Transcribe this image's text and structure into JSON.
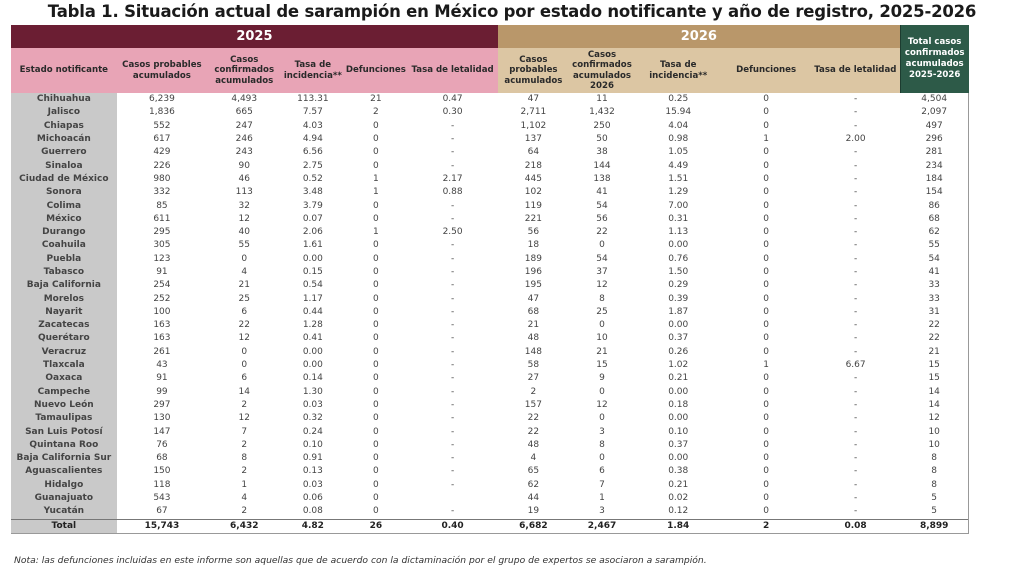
{
  "title": "Tabla 1. Situación actual de sarampión en México por estado notificante y año de registro, 2025-2026",
  "colors": {
    "year2025": "#6b1e33",
    "header2025": "#e8a4b6",
    "year2026": "#b9976a",
    "header2026": "#dcc6a3",
    "total": "#2d5a48",
    "stateCol": "#c9c9c9"
  },
  "header": {
    "year_2025": "2025",
    "year_2026": "2026",
    "state": "Estado notificante",
    "c25_probables": "Casos probables acumulados",
    "c25_confirmados": "Casos confirmados acumulados",
    "c25_tasa_inc": "Tasa de incidencia**",
    "c25_defunciones": "Defunciones",
    "c25_letalidad": "Tasa de letalidad",
    "c26_probables": "Casos probables acumulados",
    "c26_confirmados": "Casos confirmados acumulados 2026",
    "c26_tasa_inc": "Tasa de incidencia**",
    "c26_defunciones": "Defunciones",
    "c26_letalidad": "Tasa de letalidad",
    "total": "Total casos confirmados acumulados 2025-2026"
  },
  "rows": [
    [
      "Chihuahua",
      "6,239",
      "4,493",
      "113.31",
      "21",
      "0.47",
      "47",
      "11",
      "0.25",
      "0",
      "-",
      "4,504"
    ],
    [
      "Jalisco",
      "1,836",
      "665",
      "7.57",
      "2",
      "0.30",
      "2,711",
      "1,432",
      "15.94",
      "0",
      "-",
      "2,097"
    ],
    [
      "Chiapas",
      "552",
      "247",
      "4.03",
      "0",
      "-",
      "1,102",
      "250",
      "4.04",
      "0",
      "-",
      "497"
    ],
    [
      "Michoacán",
      "617",
      "246",
      "4.94",
      "0",
      "-",
      "137",
      "50",
      "0.98",
      "1",
      "2.00",
      "296"
    ],
    [
      "Guerrero",
      "429",
      "243",
      "6.56",
      "0",
      "-",
      "64",
      "38",
      "1.05",
      "0",
      "-",
      "281"
    ],
    [
      "Sinaloa",
      "226",
      "90",
      "2.75",
      "0",
      "-",
      "218",
      "144",
      "4.49",
      "0",
      "-",
      "234"
    ],
    [
      "Ciudad de México",
      "980",
      "46",
      "0.52",
      "1",
      "2.17",
      "445",
      "138",
      "1.51",
      "0",
      "-",
      "184"
    ],
    [
      "Sonora",
      "332",
      "113",
      "3.48",
      "1",
      "0.88",
      "102",
      "41",
      "1.29",
      "0",
      "-",
      "154"
    ],
    [
      "Colima",
      "85",
      "32",
      "3.79",
      "0",
      "-",
      "119",
      "54",
      "7.00",
      "0",
      "-",
      "86"
    ],
    [
      "México",
      "611",
      "12",
      "0.07",
      "0",
      "-",
      "221",
      "56",
      "0.31",
      "0",
      "-",
      "68"
    ],
    [
      "Durango",
      "295",
      "40",
      "2.06",
      "1",
      "2.50",
      "56",
      "22",
      "1.13",
      "0",
      "-",
      "62"
    ],
    [
      "Coahuila",
      "305",
      "55",
      "1.61",
      "0",
      "-",
      "18",
      "0",
      "0.00",
      "0",
      "-",
      "55"
    ],
    [
      "Puebla",
      "123",
      "0",
      "0.00",
      "0",
      "-",
      "189",
      "54",
      "0.76",
      "0",
      "-",
      "54"
    ],
    [
      "Tabasco",
      "91",
      "4",
      "0.15",
      "0",
      "-",
      "196",
      "37",
      "1.50",
      "0",
      "-",
      "41"
    ],
    [
      "Baja California",
      "254",
      "21",
      "0.54",
      "0",
      "-",
      "195",
      "12",
      "0.29",
      "0",
      "-",
      "33"
    ],
    [
      "Morelos",
      "252",
      "25",
      "1.17",
      "0",
      "-",
      "47",
      "8",
      "0.39",
      "0",
      "-",
      "33"
    ],
    [
      "Nayarit",
      "100",
      "6",
      "0.44",
      "0",
      "-",
      "68",
      "25",
      "1.87",
      "0",
      "-",
      "31"
    ],
    [
      "Zacatecas",
      "163",
      "22",
      "1.28",
      "0",
      "-",
      "21",
      "0",
      "0.00",
      "0",
      "-",
      "22"
    ],
    [
      "Querétaro",
      "163",
      "12",
      "0.41",
      "0",
      "-",
      "48",
      "10",
      "0.37",
      "0",
      "-",
      "22"
    ],
    [
      "Veracruz",
      "261",
      "0",
      "0.00",
      "0",
      "-",
      "148",
      "21",
      "0.26",
      "0",
      "-",
      "21"
    ],
    [
      "Tlaxcala",
      "43",
      "0",
      "0.00",
      "0",
      "-",
      "58",
      "15",
      "1.02",
      "1",
      "6.67",
      "15"
    ],
    [
      "Oaxaca",
      "91",
      "6",
      "0.14",
      "0",
      "-",
      "27",
      "9",
      "0.21",
      "0",
      "-",
      "15"
    ],
    [
      "Campeche",
      "99",
      "14",
      "1.30",
      "0",
      "-",
      "2",
      "0",
      "0.00",
      "0",
      "-",
      "14"
    ],
    [
      "Nuevo León",
      "297",
      "2",
      "0.03",
      "0",
      "-",
      "157",
      "12",
      "0.18",
      "0",
      "-",
      "14"
    ],
    [
      "Tamaulipas",
      "130",
      "12",
      "0.32",
      "0",
      "-",
      "22",
      "0",
      "0.00",
      "0",
      "-",
      "12"
    ],
    [
      "San Luis Potosí",
      "147",
      "7",
      "0.24",
      "0",
      "-",
      "22",
      "3",
      "0.10",
      "0",
      "-",
      "10"
    ],
    [
      "Quintana Roo",
      "76",
      "2",
      "0.10",
      "0",
      "-",
      "48",
      "8",
      "0.37",
      "0",
      "-",
      "10"
    ],
    [
      "Baja California Sur",
      "68",
      "8",
      "0.91",
      "0",
      "-",
      "4",
      "0",
      "0.00",
      "0",
      "-",
      "8"
    ],
    [
      "Aguascalientes",
      "150",
      "2",
      "0.13",
      "0",
      "-",
      "65",
      "6",
      "0.38",
      "0",
      "-",
      "8"
    ],
    [
      "Hidalgo",
      "118",
      "1",
      "0.03",
      "0",
      "-",
      "62",
      "7",
      "0.21",
      "0",
      "-",
      "8"
    ],
    [
      "Guanajuato",
      "543",
      "4",
      "0.06",
      "0",
      "",
      "44",
      "1",
      "0.02",
      "0",
      "-",
      "5"
    ],
    [
      "Yucatán",
      "67",
      "2",
      "0.08",
      "0",
      "-",
      "19",
      "3",
      "0.12",
      "0",
      "-",
      "5"
    ]
  ],
  "total_row": [
    "Total",
    "15,743",
    "6,432",
    "4.82",
    "26",
    "0.40",
    "6,682",
    "2,467",
    "1.84",
    "2",
    "0.08",
    "8,899"
  ],
  "note": "Nota: las defunciones incluidas en este informe son aquellas que de acuerdo con la dictaminación por el grupo de expertos se asociaron a sarampión."
}
